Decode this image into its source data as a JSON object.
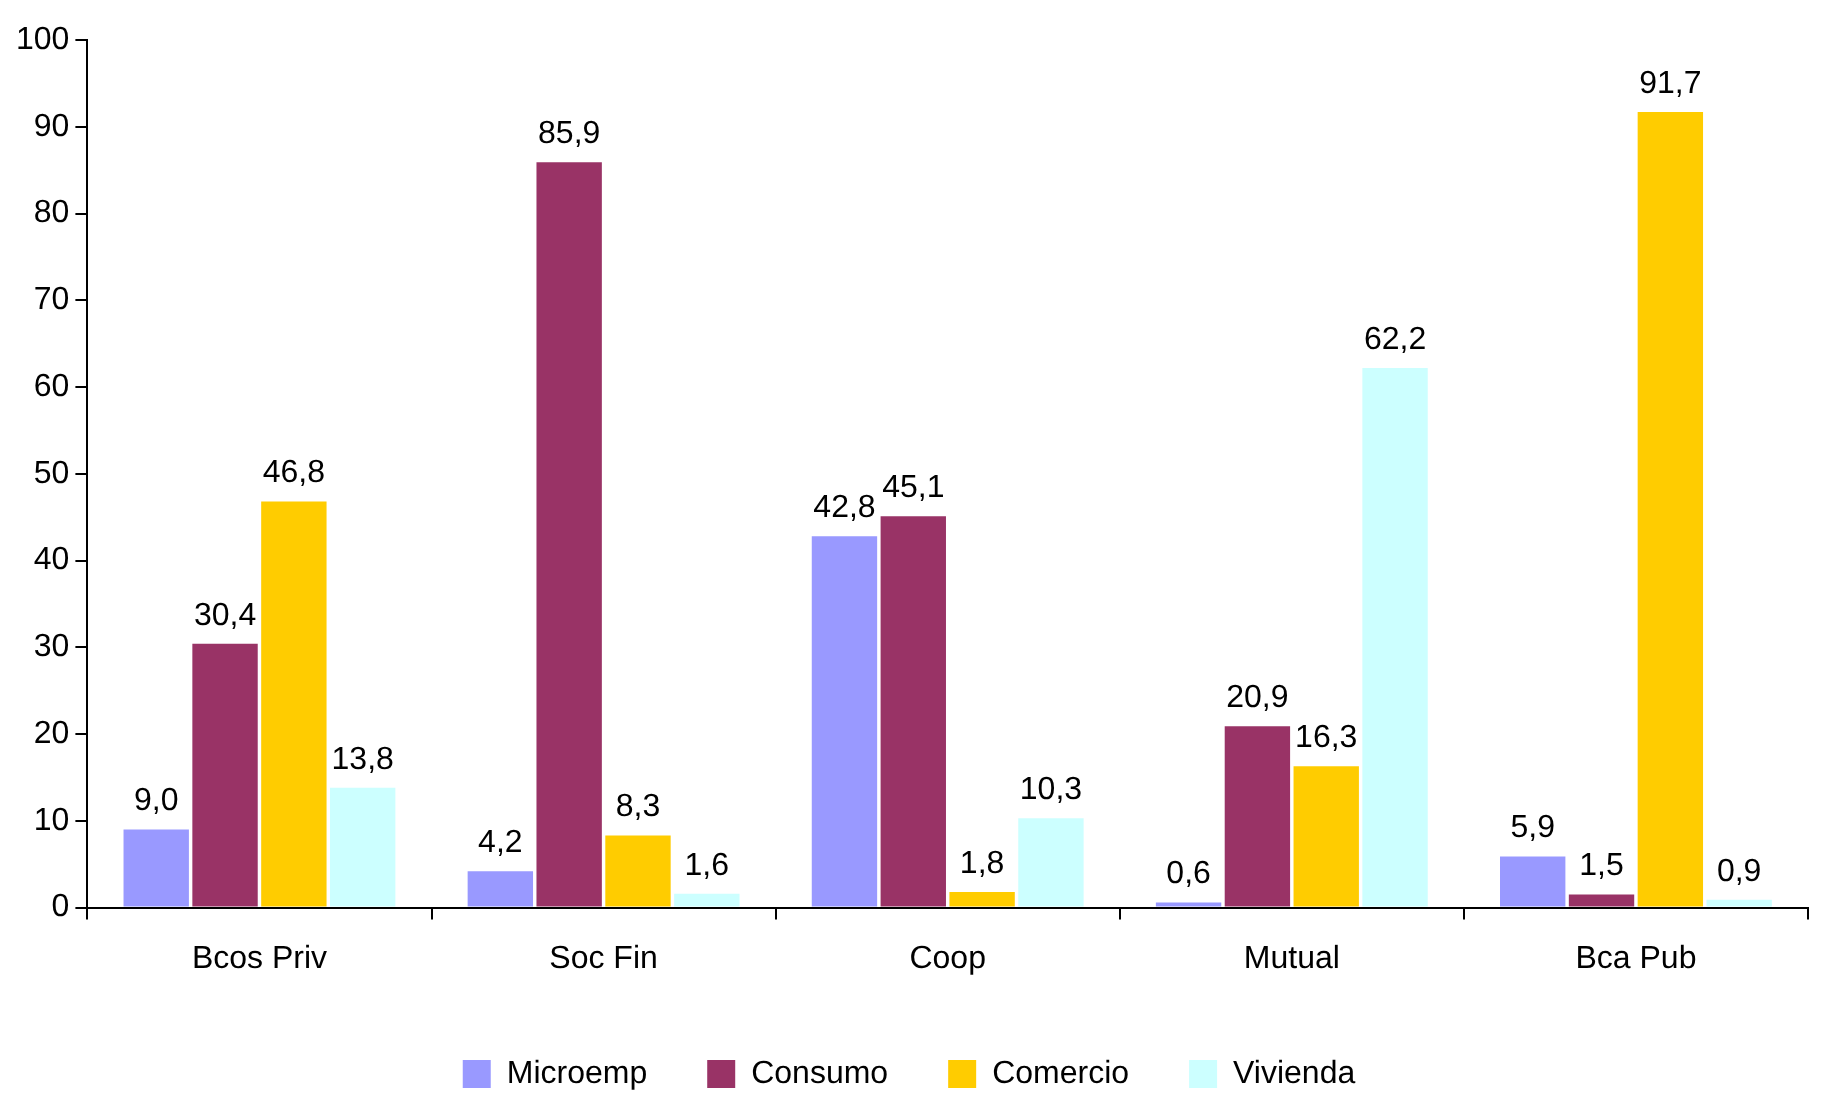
{
  "chart_data": {
    "type": "bar",
    "categories": [
      "Bcos Priv",
      "Soc Fin",
      "Coop",
      "Mutual",
      "Bca Pub"
    ],
    "series": [
      {
        "name": "Microemp",
        "color": "#9999ff",
        "values": [
          9.0,
          4.2,
          42.8,
          0.6,
          5.9
        ],
        "value_labels": [
          "9,0",
          "4,2",
          "42,8",
          "0,6",
          "5,9"
        ]
      },
      {
        "name": "Consumo",
        "color": "#993366",
        "values": [
          30.4,
          85.9,
          45.1,
          20.9,
          1.5
        ],
        "value_labels": [
          "30,4",
          "85,9",
          "45,1",
          "20,9",
          "1,5"
        ]
      },
      {
        "name": "Comercio",
        "color": "#ffcc00",
        "values": [
          46.8,
          8.3,
          1.8,
          16.3,
          91.7
        ],
        "value_labels": [
          "46,8",
          "8,3",
          "1,8",
          "16,3",
          "91,7"
        ]
      },
      {
        "name": "Vivienda",
        "color": "#ccffff",
        "values": [
          13.8,
          1.6,
          10.3,
          62.2,
          0.9
        ],
        "value_labels": [
          "13,8",
          "1,6",
          "10,3",
          "62,2",
          "0,9"
        ]
      }
    ],
    "ylim": [
      0,
      100
    ],
    "yticks": [
      0,
      10,
      20,
      30,
      40,
      50,
      60,
      70,
      80,
      90,
      100
    ],
    "grid": false,
    "legend": "bottom"
  }
}
